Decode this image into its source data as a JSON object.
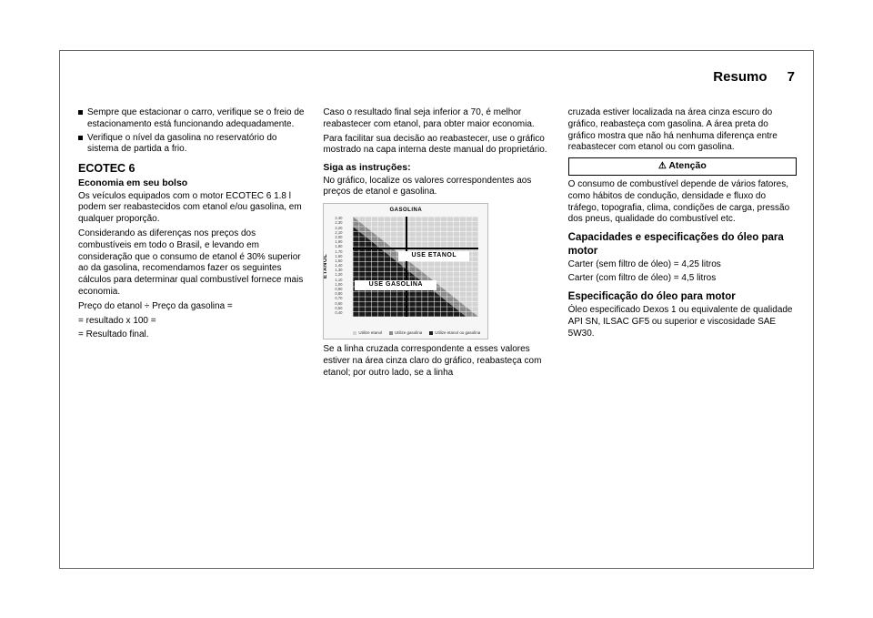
{
  "header": {
    "title": "Resumo",
    "page_number": "7"
  },
  "col1": {
    "bullets": [
      "Sempre que estacionar o carro, verifique se o freio de estacionamento está funcionando adequadamente.",
      "Verifique o nível da gasolina no reservatório do sistema de partida a frio."
    ],
    "h_ecotec": "ECOTEC 6",
    "h_economia": "Economia em seu bolso",
    "p1": "Os veículos equipados com o motor ECOTEC 6 1.8 l podem ser reabastecidos com etanol e/ou gasolina, em qualquer proporção.",
    "p2": "Considerando as diferenças nos preços dos combustíveis em todo o Brasil, e levando em consideração que o consumo de etanol é 30% superior ao da gasolina, recomendamos fazer os seguintes cálculos para determinar qual combustível fornece mais economia.",
    "p3": "Preço do etanol ÷ Preço da gasolina =",
    "p4": "= resultado x 100 =",
    "p5": "= Resultado final."
  },
  "col2": {
    "p1": "Caso o resultado final seja inferior a 70, é melhor reabastecer com etanol, para obter maior economia.",
    "p2": "Para facilitar sua decisão ao reabastecer, use o gráfico mostrado na capa interna deste manual do proprietário.",
    "h_siga": "Siga as instruções:",
    "p3": "No gráfico, localize os valores correspondentes aos preços de etanol e gasolina.",
    "chart": {
      "title_top": "GASOLINA",
      "ylabel": "ETANOL",
      "label_use_et": "USE ETANOL",
      "label_use_ga": "USE GASOLINA",
      "yticks": [
        "2,40",
        "2,30",
        "2,20",
        "2,10",
        "2,00",
        "1,90",
        "1,80",
        "1,70",
        "1,60",
        "1,50",
        "1,40",
        "1,30",
        "1,20",
        "1,10",
        "1,00",
        "0,90",
        "0,80",
        "0,70",
        "0,60",
        "0,50",
        "0,40"
      ],
      "legend": [
        "Utilize etanol",
        "Utilize gasolina",
        "Utilize etanol ou gasolina"
      ],
      "colors": {
        "light": "#d3d3d3",
        "dark": "#8a8a8a",
        "black": "#1b1b1b",
        "bg": "#f6f6f6"
      }
    },
    "p4": "Se a linha cruzada correspondente a esses valores estiver na área cinza claro do gráfico, reabasteça com etanol; por outro lado, se a linha"
  },
  "col3": {
    "p1": "cruzada estiver localizada na área cinza escuro do gráfico, reabasteça com gasolina. A área preta do gráfico mostra que não há nenhuma diferença entre reabastecer com etanol ou com gasolina.",
    "warn": "Atenção",
    "p2": "O consumo de combustível depende de vários fatores, como hábitos de condução, densidade e fluxo do tráfego, topografia, clima, condições de carga, pressão dos pneus, qualidade do combustível etc.",
    "h_cap": "Capacidades e especificações do óleo para motor",
    "p3": "Carter (sem filtro de óleo) = 4,25 litros",
    "p4": "Carter (com filtro de óleo) = 4,5 litros",
    "h_esp": "Especificação do óleo para motor",
    "p5": "Óleo especificado Dexos 1 ou equivalente de qualidade API SN, ILSAC GF5 ou superior e viscosidade SAE 5W30."
  }
}
